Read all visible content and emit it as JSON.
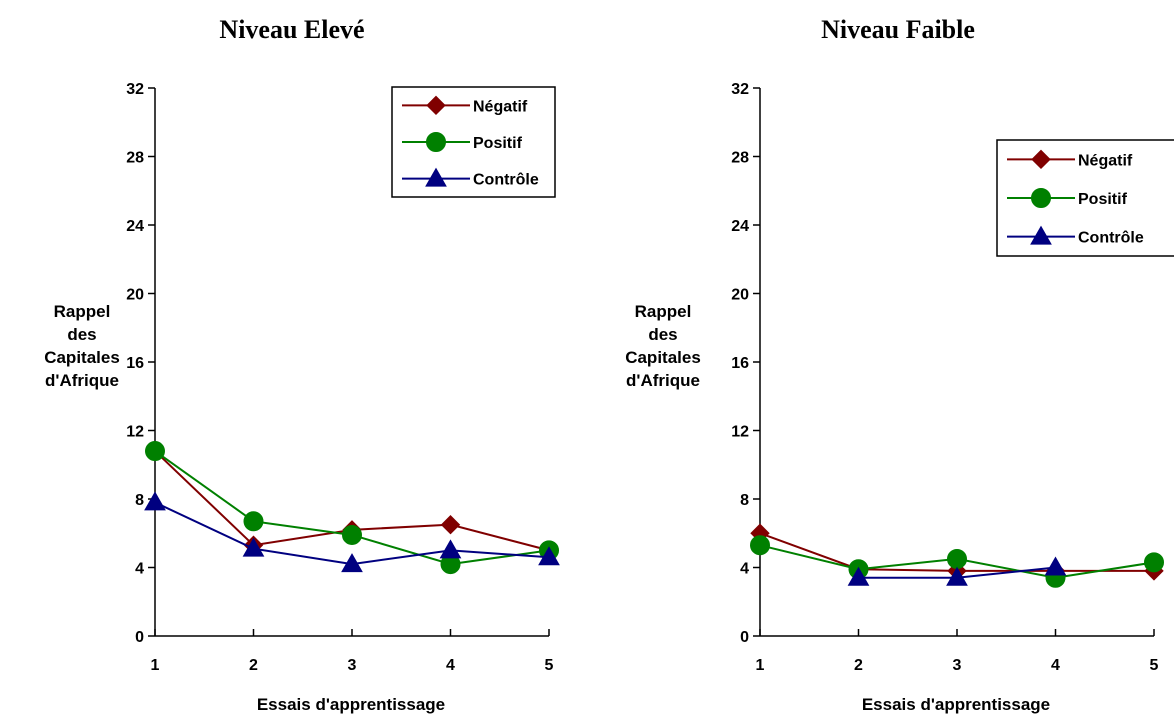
{
  "chart_data": [
    {
      "type": "line",
      "title": "Niveau Elevé",
      "xlabel": "Essais d'apprentissage",
      "ylabel_lines": [
        "Rappel",
        "des",
        "Capitales",
        "d'Afrique"
      ],
      "x": [
        1,
        2,
        3,
        4,
        5
      ],
      "ylim": [
        0,
        32
      ],
      "yticks": [
        0,
        4,
        8,
        12,
        16,
        20,
        24,
        28,
        32
      ],
      "grid": false,
      "legend_position": "top-right",
      "series": [
        {
          "name": "Négatif",
          "color": "#800000",
          "marker": "diamond",
          "values": [
            10.8,
            5.3,
            6.2,
            6.5,
            5.0
          ]
        },
        {
          "name": "Positif",
          "color": "#008000",
          "marker": "circle",
          "values": [
            10.8,
            6.7,
            5.9,
            4.2,
            5.0
          ]
        },
        {
          "name": "Contrôle",
          "color": "#000080",
          "marker": "triangle",
          "values": [
            7.8,
            5.1,
            4.2,
            5.0,
            4.6
          ]
        }
      ]
    },
    {
      "type": "line",
      "title": "Niveau Faible",
      "xlabel": "Essais d'apprentissage",
      "ylabel_lines": [
        "Rappel",
        "des",
        "Capitales",
        "d'Afrique"
      ],
      "x": [
        1,
        2,
        3,
        4,
        5
      ],
      "ylim": [
        0,
        32
      ],
      "yticks": [
        0,
        4,
        8,
        12,
        16,
        20,
        24,
        28,
        32
      ],
      "grid": false,
      "legend_position": "right",
      "series": [
        {
          "name": "Négatif",
          "color": "#800000",
          "marker": "diamond",
          "values": [
            6.0,
            3.9,
            3.8,
            3.8,
            3.8
          ]
        },
        {
          "name": "Positif",
          "color": "#008000",
          "marker": "circle",
          "values": [
            5.3,
            3.9,
            4.5,
            3.4,
            4.3
          ]
        },
        {
          "name": "Contrôle",
          "color": "#000080",
          "marker": "triangle",
          "values": [
            null,
            3.4,
            3.4,
            4.0,
            null
          ]
        }
      ]
    }
  ]
}
